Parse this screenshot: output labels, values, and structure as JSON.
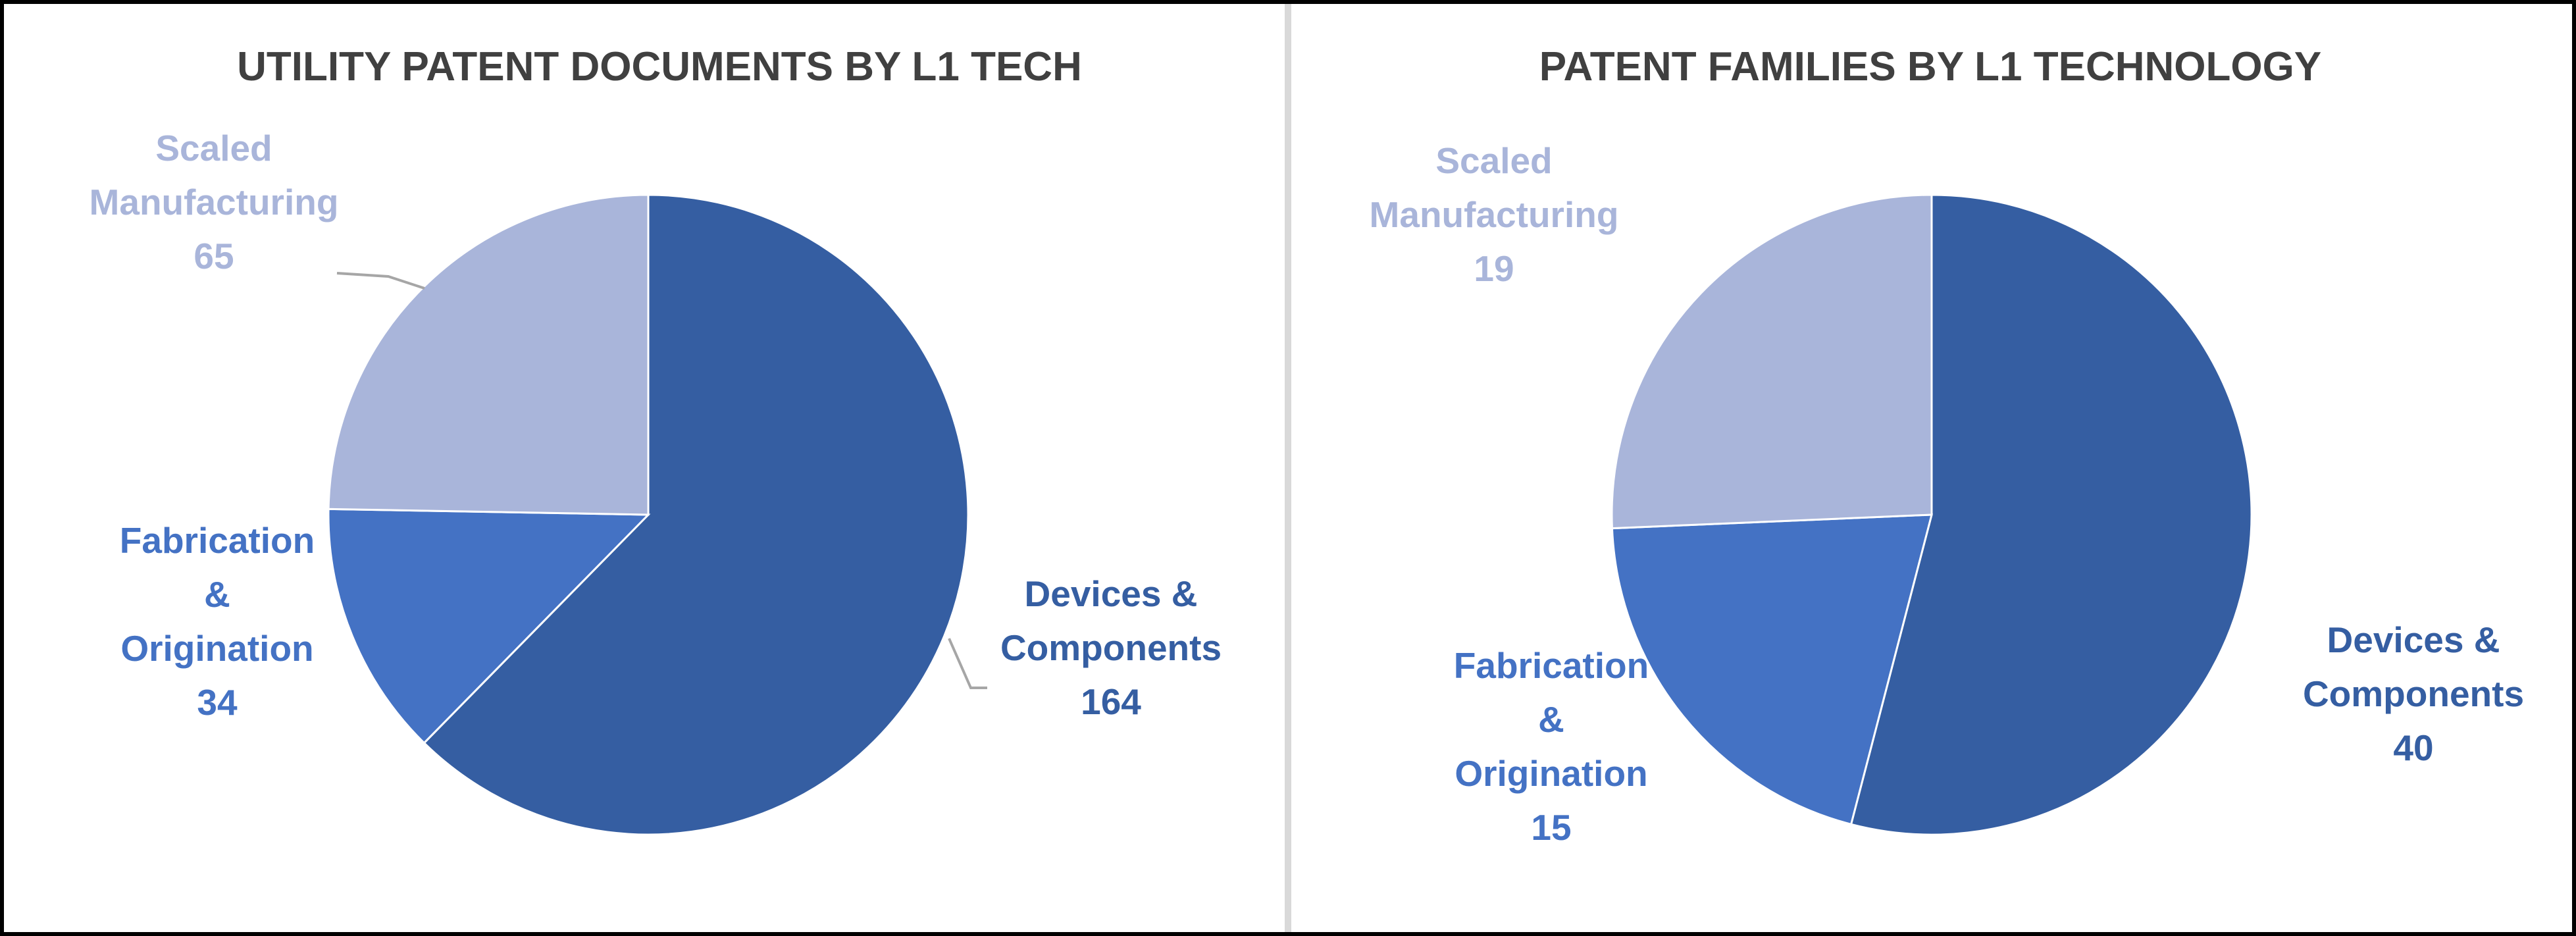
{
  "colors": {
    "Devices & Components": "#355ea2",
    "Fabrication & Origination": "#4472c4",
    "Scaled Manufacturing": "#a9b5da",
    "title": "#404040",
    "frame": "#000000",
    "divider": "#d9d9d9"
  },
  "chart_data": [
    {
      "type": "pie",
      "title": "UTILITY PATENT DOCUMENTS BY L1 TECH",
      "categories": [
        "Devices & Components",
        "Fabrication & Origination",
        "Scaled Manufacturing"
      ],
      "values": [
        164,
        34,
        65
      ],
      "data_labels": [
        {
          "lines": [
            "Devices &",
            "Components",
            "164"
          ]
        },
        {
          "lines": [
            "Fabrication",
            "&",
            "Origination",
            "34"
          ]
        },
        {
          "lines": [
            "Scaled",
            "Manufacturing",
            "65"
          ]
        }
      ],
      "start_angle_deg": 0,
      "direction": "clockwise",
      "legend": "none",
      "leader_lines": [
        "Devices & Components",
        "Scaled Manufacturing"
      ]
    },
    {
      "type": "pie",
      "title": "PATENT FAMILIES BY L1 TECHNOLOGY",
      "categories": [
        "Devices & Components",
        "Fabrication & Origination",
        "Scaled Manufacturing"
      ],
      "values": [
        40,
        15,
        19
      ],
      "data_labels": [
        {
          "lines": [
            "Devices &",
            "Components",
            "40"
          ]
        },
        {
          "lines": [
            "Fabrication",
            "&",
            "Origination",
            "15"
          ]
        },
        {
          "lines": [
            "Scaled",
            "Manufacturing",
            "19"
          ]
        }
      ],
      "start_angle_deg": 0,
      "direction": "clockwise",
      "legend": "none",
      "leader_lines": []
    }
  ]
}
